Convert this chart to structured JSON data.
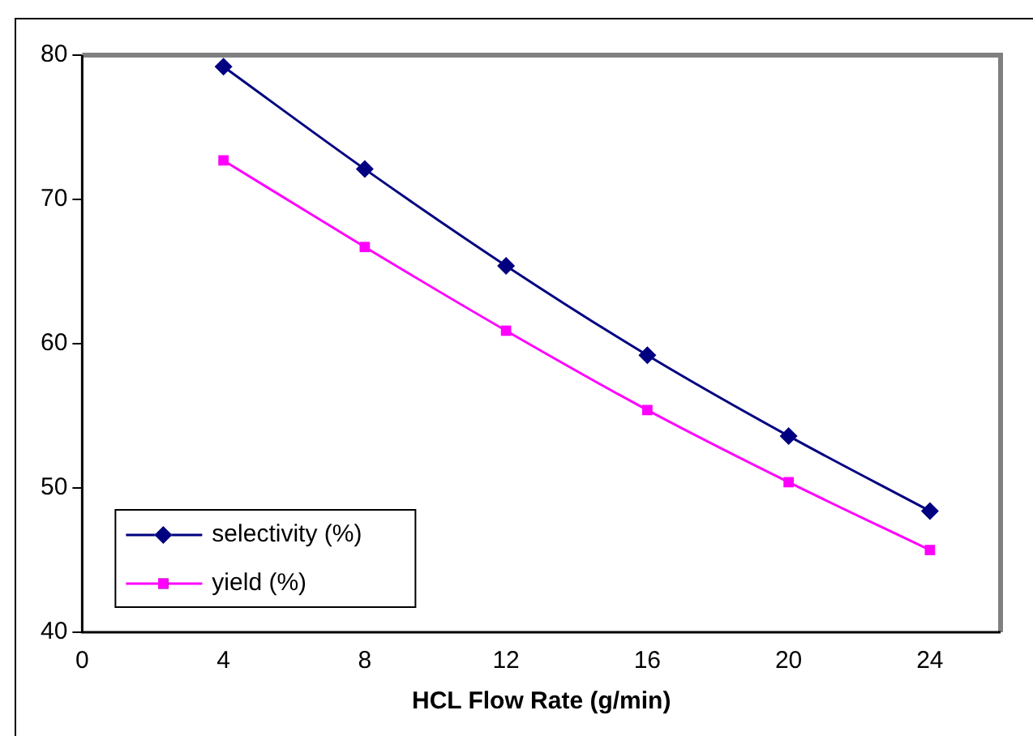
{
  "chart_data": {
    "type": "line",
    "xlabel": "HCL Flow Rate (g/min)",
    "x": [
      4,
      8,
      12,
      16,
      20,
      24
    ],
    "series": [
      {
        "name": "selectivity (%)",
        "color": "#000080",
        "values": [
          79.2,
          72.1,
          65.4,
          59.2,
          53.6,
          48.4
        ],
        "marker": "diamond"
      },
      {
        "name": "yield (%)",
        "color": "#ff00ff",
        "values": [
          72.7,
          66.7,
          60.9,
          55.4,
          50.4,
          45.7
        ],
        "marker": "square"
      }
    ],
    "xlim": [
      0,
      26
    ],
    "xticks": [
      0,
      4,
      8,
      12,
      16,
      20,
      24
    ],
    "ylim": [
      40,
      80
    ],
    "yticks": [
      40,
      50,
      60,
      70,
      80
    ],
    "grid": false,
    "legend": "bottom left",
    "line_style": "solid"
  }
}
